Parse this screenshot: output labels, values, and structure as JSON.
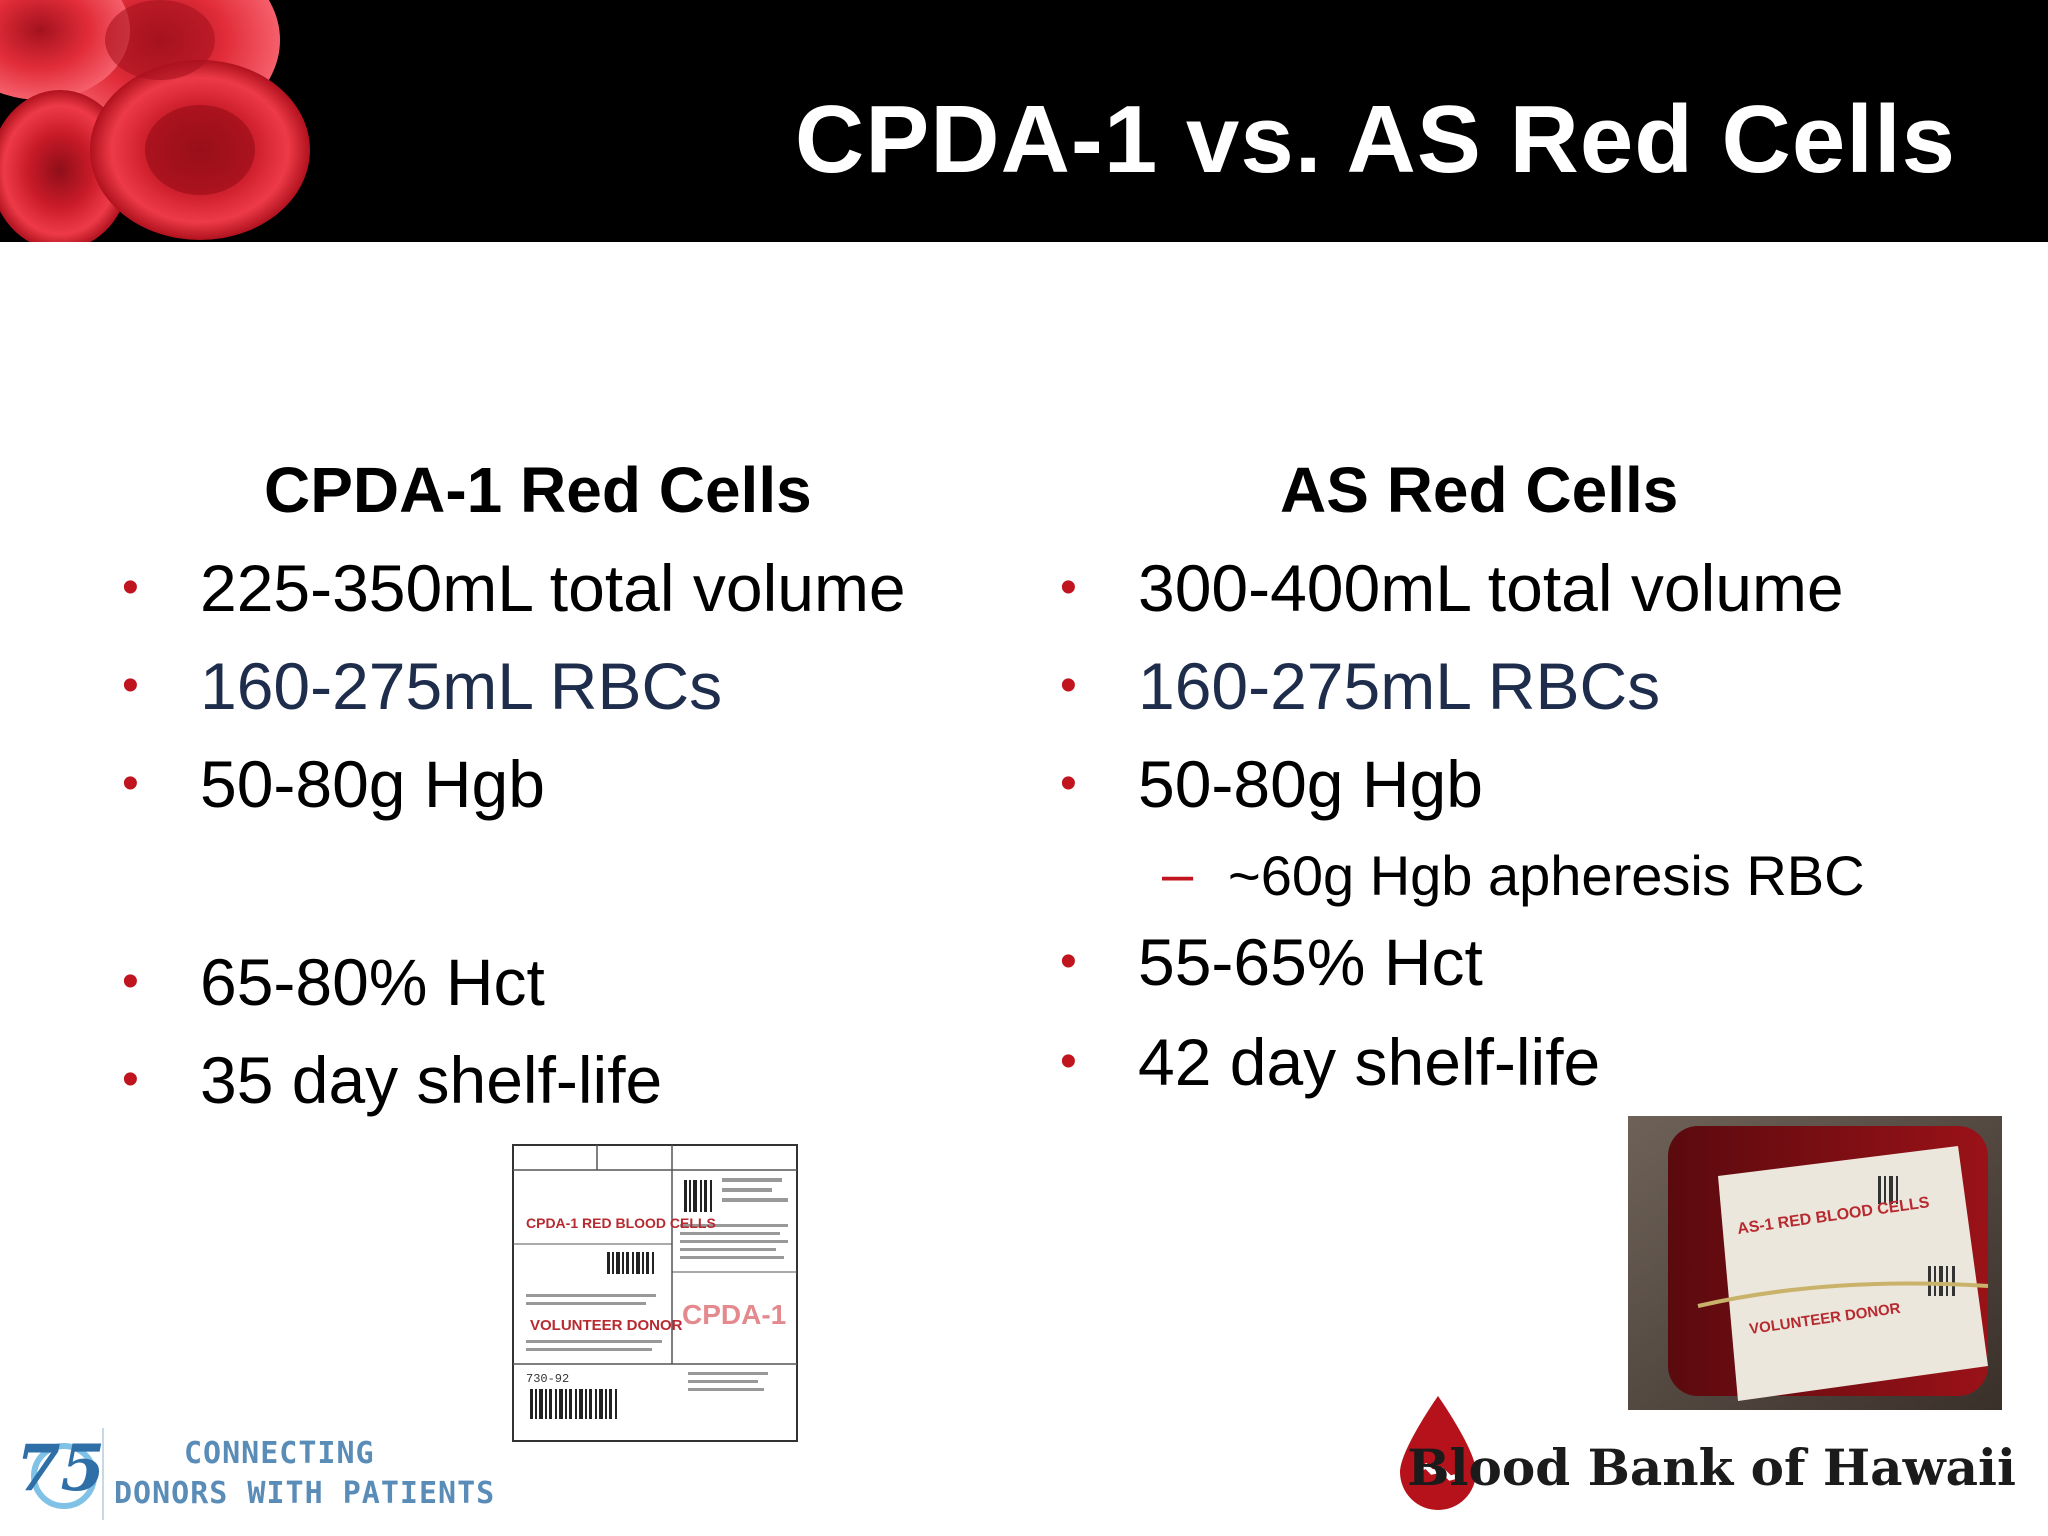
{
  "slide": {
    "title": "CPDA-1 vs. AS Red Cells"
  },
  "columns": [
    {
      "heading": "CPDA-1 Red Cells",
      "items": [
        {
          "text": "225-350mL total volume",
          "marker": "•"
        },
        {
          "text": "160-275mL RBCs",
          "marker": "•"
        },
        {
          "text": "50-80g Hgb",
          "marker": "•"
        },
        {
          "text": "65-80% Hct",
          "marker": "•"
        },
        {
          "text": "35 day shelf-life",
          "marker": "•"
        }
      ]
    },
    {
      "heading": "AS Red Cells",
      "items": [
        {
          "text": "300-400mL total volume",
          "marker": "•"
        },
        {
          "text": "160-275mL RBCs",
          "marker": "•"
        },
        {
          "text": "50-80g Hgb",
          "marker": "•"
        },
        {
          "text": "55-65% Hct",
          "marker": "•"
        },
        {
          "text": "42 day shelf-life",
          "marker": "•"
        }
      ],
      "sub_item": {
        "text": "~60g Hgb apheresis RBC",
        "marker": "–"
      }
    }
  ],
  "label_image": {
    "product": "CPDA-1 RED BLOOD CELLS",
    "donor": "VOLUNTEER DONOR",
    "stamp": "CPDA-1",
    "code": "730-92"
  },
  "bag_photo": {
    "product": "AS-1 RED BLOOD CELLS",
    "donor": "VOLUNTEER DONOR"
  },
  "footer": {
    "anniversary_number": "75",
    "tagline_line1": "CONNECTING",
    "tagline_line2": "DONORS WITH PATIENTS",
    "brand": "Blood Bank of Hawaii"
  },
  "colors": {
    "bullet": "#c0141e",
    "secondary_text": "#1f2d4c",
    "header_bg": "#000000"
  },
  "icons": [
    "red-blood-cells-art",
    "blood-drop-icon",
    "anniversary-75-icon"
  ]
}
